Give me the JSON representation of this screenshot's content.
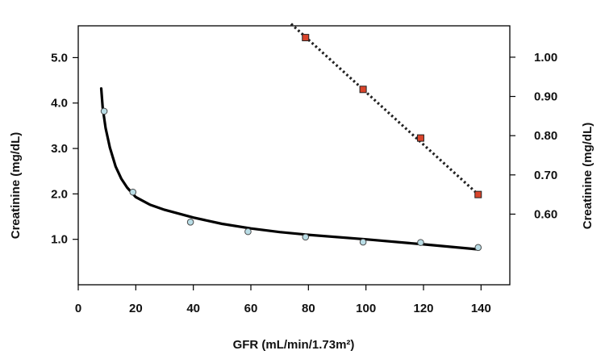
{
  "chart_data": {
    "type": "scatter",
    "xlabel": "GFR (mL/min/1.73m²)",
    "ylabel_left": "Creatinine (mg/dL)",
    "ylabel_right": "Creatinine (mg/dL)",
    "xlim": [
      0,
      150
    ],
    "ylim_left": [
      0,
      5.7
    ],
    "ylim_right": [
      0.42,
      1.08
    ],
    "x_ticks": [
      0,
      20,
      40,
      60,
      80,
      100,
      120,
      140
    ],
    "y_left_ticks": [
      {
        "value": 1.0,
        "label": "1.0"
      },
      {
        "value": 2.0,
        "label": "2.0"
      },
      {
        "value": 3.0,
        "label": "3.0"
      },
      {
        "value": 4.0,
        "label": "4.0"
      },
      {
        "value": 5.0,
        "label": "5.0"
      }
    ],
    "y_right_ticks": [
      {
        "value": 0.6,
        "label": "0.60"
      },
      {
        "value": 0.7,
        "label": "0.70"
      },
      {
        "value": 0.8,
        "label": "0.80"
      },
      {
        "value": 0.9,
        "label": "0.90"
      },
      {
        "value": 1.0,
        "label": "1.00"
      }
    ],
    "grid": false,
    "series": [
      {
        "axis": "left",
        "marker": "circle",
        "color": "#b9dde6",
        "points": [
          [
            9,
            3.82
          ],
          [
            19,
            2.04
          ],
          [
            39,
            1.38
          ],
          [
            59,
            1.17
          ],
          [
            79,
            1.05
          ],
          [
            99,
            0.94
          ],
          [
            119,
            0.93
          ],
          [
            139,
            0.82
          ]
        ]
      },
      {
        "axis": "left",
        "line_style": "solid",
        "color": "#000000",
        "points": [
          [
            8,
            4.32
          ],
          [
            8.5,
            3.9
          ],
          [
            9.5,
            3.45
          ],
          [
            11,
            3.02
          ],
          [
            13,
            2.6
          ],
          [
            15,
            2.33
          ],
          [
            17,
            2.14
          ],
          [
            20,
            1.93
          ],
          [
            25,
            1.76
          ],
          [
            30,
            1.65
          ],
          [
            40,
            1.48
          ],
          [
            50,
            1.34
          ],
          [
            60,
            1.24
          ],
          [
            70,
            1.16
          ],
          [
            80,
            1.1
          ],
          [
            100,
            1.0
          ],
          [
            120,
            0.89
          ],
          [
            139,
            0.78
          ]
        ]
      },
      {
        "axis": "right",
        "marker": "square",
        "color": "#d9442b",
        "points": [
          [
            79,
            1.05
          ],
          [
            99,
            0.918
          ],
          [
            119,
            0.794
          ],
          [
            139,
            0.65
          ]
        ]
      },
      {
        "axis": "right",
        "line_style": "dotted",
        "color": "#222222",
        "points": [
          [
            74,
            1.085
          ],
          [
            139,
            0.65
          ]
        ]
      }
    ]
  }
}
